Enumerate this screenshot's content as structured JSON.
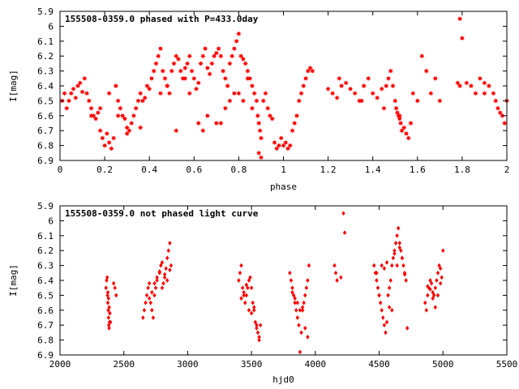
{
  "chart_data": [
    {
      "type": "scatter",
      "title": "155508-0359.0 phased with P=433.0day",
      "xlabel": "phase",
      "ylabel": "I[mag]",
      "xlim": [
        0,
        2
      ],
      "ylim": [
        6.9,
        5.9
      ],
      "y_reversed": true,
      "xticks": [
        0,
        0.2,
        0.4,
        0.6,
        0.8,
        1,
        1.2,
        1.4,
        1.6,
        1.8,
        2
      ],
      "xtick_labels": [
        "0",
        "0.2",
        "0.4",
        "0.6",
        "0.8",
        "1",
        "1.2",
        "1.4",
        "1.6",
        "1.8",
        "2"
      ],
      "yticks": [
        5.9,
        6,
        6.1,
        6.2,
        6.3,
        6.4,
        6.5,
        6.6,
        6.7,
        6.8,
        6.9
      ],
      "ytick_labels": [
        "5.9",
        "6",
        "6.1",
        "6.2",
        "6.3",
        "6.4",
        "6.5",
        "6.6",
        "6.7",
        "6.8",
        "6.9"
      ],
      "marker": "star",
      "color": "#ff0000",
      "series": [
        {
          "x": [
            0.01,
            0.02,
            0.03,
            0.04,
            0.05,
            0.06,
            0.07,
            0.08,
            0.09,
            0.1,
            0.11,
            0.12,
            0.13,
            0.14,
            0.15,
            0.16,
            0.17,
            0.18,
            0.19,
            0.2,
            0.21,
            0.22,
            0.23,
            0.24,
            0.25,
            0.26,
            0.27,
            0.28,
            0.29,
            0.3,
            0.31,
            0.32,
            0.33,
            0.34,
            0.35,
            0.36,
            0.37,
            0.38,
            0.39,
            0.4,
            0.41,
            0.42,
            0.43,
            0.44,
            0.45,
            0.46,
            0.47,
            0.48,
            0.49,
            0.5,
            0.51,
            0.52,
            0.53,
            0.54,
            0.55,
            0.56,
            0.57,
            0.58,
            0.59,
            0.6,
            0.61,
            0.62,
            0.63,
            0.64,
            0.65,
            0.66,
            0.67,
            0.68,
            0.69,
            0.7,
            0.71,
            0.72,
            0.73,
            0.74,
            0.75,
            0.76,
            0.77,
            0.78,
            0.79,
            0.8,
            0.81,
            0.82,
            0.83,
            0.84,
            0.85,
            0.86,
            0.87,
            0.88,
            0.885,
            0.89,
            0.895,
            0.9,
            0.91,
            0.92,
            0.93,
            0.94,
            0.95,
            0.96,
            0.97,
            0.98,
            0.99,
            1.0,
            1.01,
            1.02,
            1.03,
            1.04,
            1.05,
            1.06,
            1.07,
            1.08,
            1.09,
            1.1,
            1.11,
            1.12,
            1.13,
            1.2,
            1.22,
            1.24,
            1.26,
            1.28,
            1.3,
            1.32,
            1.34,
            1.36,
            1.38,
            1.4,
            1.42,
            1.44,
            1.46,
            1.47,
            1.48,
            1.49,
            1.5,
            1.505,
            1.51,
            1.515,
            1.52,
            1.525,
            1.53,
            1.54,
            1.55,
            1.56,
            1.58,
            1.6,
            1.62,
            1.64,
            1.66,
            1.68,
            1.7,
            1.78,
            1.79,
            1.8,
            1.82,
            1.84,
            1.86,
            1.88,
            1.9,
            1.92,
            1.94,
            1.95,
            1.96,
            1.97,
            1.98,
            1.99,
            2.0,
            0.22,
            0.3,
            0.36,
            0.45,
            0.52,
            0.58,
            0.62,
            0.66,
            0.7,
            0.74,
            0.78,
            0.82,
            0.86,
            0.89,
            0.9,
            0.14,
            0.18,
            0.26,
            0.48,
            0.56,
            0.64,
            0.72,
            0.76,
            0.8,
            0.84,
            1.25,
            1.35,
            1.45,
            1.52,
            1.57,
            1.79,
            1.9
          ],
          "y": [
            6.5,
            6.45,
            6.55,
            6.5,
            6.45,
            6.42,
            6.48,
            6.4,
            6.38,
            6.44,
            6.35,
            6.45,
            6.5,
            6.55,
            6.6,
            6.62,
            6.58,
            6.7,
            6.75,
            6.8,
            6.72,
            6.78,
            6.82,
            6.75,
            6.4,
            6.5,
            6.55,
            6.6,
            6.62,
            6.68,
            6.7,
            6.65,
            6.6,
            6.55,
            6.5,
            6.45,
            6.5,
            6.48,
            6.4,
            6.42,
            6.35,
            6.3,
            6.25,
            6.2,
            6.15,
            6.3,
            6.35,
            6.4,
            6.45,
            6.3,
            6.25,
            6.2,
            6.22,
            6.3,
            6.35,
            6.28,
            6.25,
            6.2,
            6.3,
            6.35,
            6.42,
            6.38,
            6.25,
            6.2,
            6.15,
            6.28,
            6.32,
            6.25,
            6.2,
            6.18,
            6.15,
            6.2,
            6.3,
            6.35,
            6.4,
            6.25,
            6.2,
            6.15,
            6.1,
            6.05,
            6.2,
            6.22,
            6.25,
            6.3,
            6.35,
            6.4,
            6.45,
            6.5,
            6.6,
            6.65,
            6.7,
            6.75,
            6.5,
            6.45,
            6.55,
            6.6,
            6.62,
            6.78,
            6.82,
            6.8,
            6.75,
            6.8,
            6.78,
            6.82,
            6.8,
            6.7,
            6.65,
            6.6,
            6.5,
            6.45,
            6.4,
            6.35,
            6.3,
            6.28,
            6.3,
            6.42,
            6.45,
            6.48,
            6.4,
            6.38,
            6.42,
            6.45,
            6.5,
            6.4,
            6.35,
            6.45,
            6.48,
            6.42,
            6.4,
            6.35,
            6.3,
            6.4,
            6.5,
            6.55,
            6.58,
            6.6,
            6.62,
            6.65,
            6.7,
            6.68,
            6.72,
            6.75,
            6.45,
            6.5,
            6.2,
            6.3,
            6.45,
            6.35,
            6.5,
            6.38,
            5.95,
            6.08,
            6.38,
            6.4,
            6.45,
            6.35,
            6.38,
            6.4,
            6.45,
            6.5,
            6.55,
            6.58,
            6.6,
            6.65,
            6.5,
            6.45,
            6.72,
            6.68,
            6.45,
            6.7,
            6.45,
            6.65,
            6.6,
            6.65,
            6.55,
            6.45,
            6.5,
            6.55,
            6.85,
            6.88,
            6.6,
            6.55,
            6.6,
            6.4,
            6.35,
            6.7,
            6.65,
            6.5,
            6.45,
            6.35,
            6.35,
            6.5,
            6.55,
            6.6,
            6.65,
            6.4,
            6.45
          ]
        }
      ],
      "grid": false,
      "legend": "none"
    },
    {
      "type": "scatter",
      "title": "155508-0359.0 not phased light curve",
      "xlabel": "hjd0",
      "ylabel": "I[mag]",
      "xlim": [
        2000,
        5500
      ],
      "ylim": [
        6.9,
        5.9
      ],
      "y_reversed": true,
      "xticks": [
        2000,
        2500,
        3000,
        3500,
        4000,
        4500,
        5000,
        5500
      ],
      "xtick_labels": [
        "2000",
        "2500",
        "3000",
        "3500",
        "4000",
        "4500",
        "5000",
        "5500"
      ],
      "yticks": [
        5.9,
        6,
        6.1,
        6.2,
        6.3,
        6.4,
        6.5,
        6.6,
        6.7,
        6.8,
        6.9
      ],
      "ytick_labels": [
        "5.9",
        "6",
        "6.1",
        "6.2",
        "6.3",
        "6.4",
        "6.5",
        "6.6",
        "6.7",
        "6.8",
        "6.9"
      ],
      "marker": "diamond",
      "color": "#ff0000",
      "series": [
        {
          "x": [
            2360,
            2365,
            2370,
            2372,
            2375,
            2378,
            2380,
            2382,
            2385,
            2388,
            2390,
            2420,
            2430,
            2440,
            2650,
            2660,
            2670,
            2680,
            2690,
            2700,
            2710,
            2720,
            2730,
            2740,
            2750,
            2760,
            2780,
            2790,
            2800,
            2810,
            2820,
            2830,
            2840,
            2850,
            2860,
            2870,
            3400,
            3410,
            3420,
            3430,
            3440,
            3450,
            3460,
            3470,
            3480,
            3490,
            3500,
            3510,
            3520,
            3530,
            3540,
            3550,
            3560,
            3570,
            3800,
            3810,
            3820,
            3830,
            3840,
            3850,
            3860,
            3870,
            3880,
            3890,
            3900,
            3910,
            3920,
            3930,
            3940,
            3950,
            4150,
            4160,
            4170,
            4200,
            4220,
            4230,
            4460,
            4470,
            4480,
            4490,
            4500,
            4510,
            4520,
            4530,
            4540,
            4550,
            4560,
            4570,
            4580,
            4590,
            4600,
            4610,
            4620,
            4630,
            4640,
            4650,
            4660,
            4670,
            4680,
            4690,
            4700,
            4710,
            4720,
            4860,
            4870,
            4880,
            4890,
            4900,
            4910,
            4920,
            4930,
            4940,
            4950,
            4960,
            4970,
            4980,
            4990,
            5000,
            2375,
            2380,
            2385,
            2390,
            2395,
            2700,
            2720,
            2740,
            2760,
            2780,
            2800,
            2820,
            2840,
            2860,
            3420,
            3440,
            3460,
            3480,
            3500,
            3520,
            3540,
            3560,
            3820,
            3840,
            3860,
            3880,
            3900,
            3920,
            3940,
            4480,
            4500,
            4520,
            4540,
            4560,
            4580,
            4600,
            4620,
            4640,
            4660,
            4680,
            4700,
            4880,
            4900,
            4920,
            4940,
            4960,
            4980
          ],
          "y": [
            6.45,
            6.4,
            6.38,
            6.5,
            6.55,
            6.6,
            6.65,
            6.7,
            6.72,
            6.68,
            6.62,
            6.42,
            6.45,
            6.5,
            6.65,
            6.6,
            6.55,
            6.5,
            6.45,
            6.42,
            6.55,
            6.6,
            6.65,
            6.5,
            6.45,
            6.4,
            6.35,
            6.3,
            6.45,
            6.42,
            6.38,
            6.32,
            6.25,
            6.2,
            6.15,
            6.3,
            6.4,
            6.35,
            6.3,
            6.45,
            6.5,
            6.55,
            6.5,
            6.45,
            6.4,
            6.38,
            6.45,
            6.55,
            6.6,
            6.68,
            6.72,
            6.75,
            6.8,
            6.7,
            6.35,
            6.4,
            6.45,
            6.5,
            6.55,
            6.6,
            6.65,
            6.7,
            6.88,
            6.75,
            6.6,
            6.55,
            6.5,
            6.45,
            6.4,
            6.3,
            6.3,
            6.35,
            6.4,
            6.38,
            5.95,
            6.08,
            6.3,
            6.35,
            6.4,
            6.45,
            6.5,
            6.55,
            6.6,
            6.65,
            6.7,
            6.75,
            6.68,
            6.5,
            6.45,
            6.4,
            6.3,
            6.25,
            6.2,
            6.15,
            6.1,
            6.05,
            6.15,
            6.2,
            6.25,
            6.3,
            6.35,
            6.4,
            6.72,
            6.55,
            6.6,
            6.5,
            6.45,
            6.4,
            6.42,
            6.48,
            6.5,
            6.45,
            6.4,
            6.35,
            6.3,
            6.32,
            6.38,
            6.2,
            6.48,
            6.52,
            6.58,
            6.62,
            6.68,
            6.52,
            6.48,
            6.42,
            6.38,
            6.34,
            6.28,
            6.36,
            6.4,
            6.33,
            6.52,
            6.48,
            6.43,
            6.6,
            6.62,
            6.58,
            6.7,
            6.78,
            6.48,
            6.52,
            6.55,
            6.6,
            6.58,
            6.72,
            6.78,
            6.35,
            6.5,
            6.3,
            6.32,
            6.28,
            6.58,
            6.6,
            6.22,
            6.3,
            6.18,
            6.25,
            6.36,
            6.44,
            6.46,
            6.52,
            6.58,
            6.5,
            6.42
          ]
        }
      ],
      "grid": false,
      "legend": "none"
    }
  ]
}
